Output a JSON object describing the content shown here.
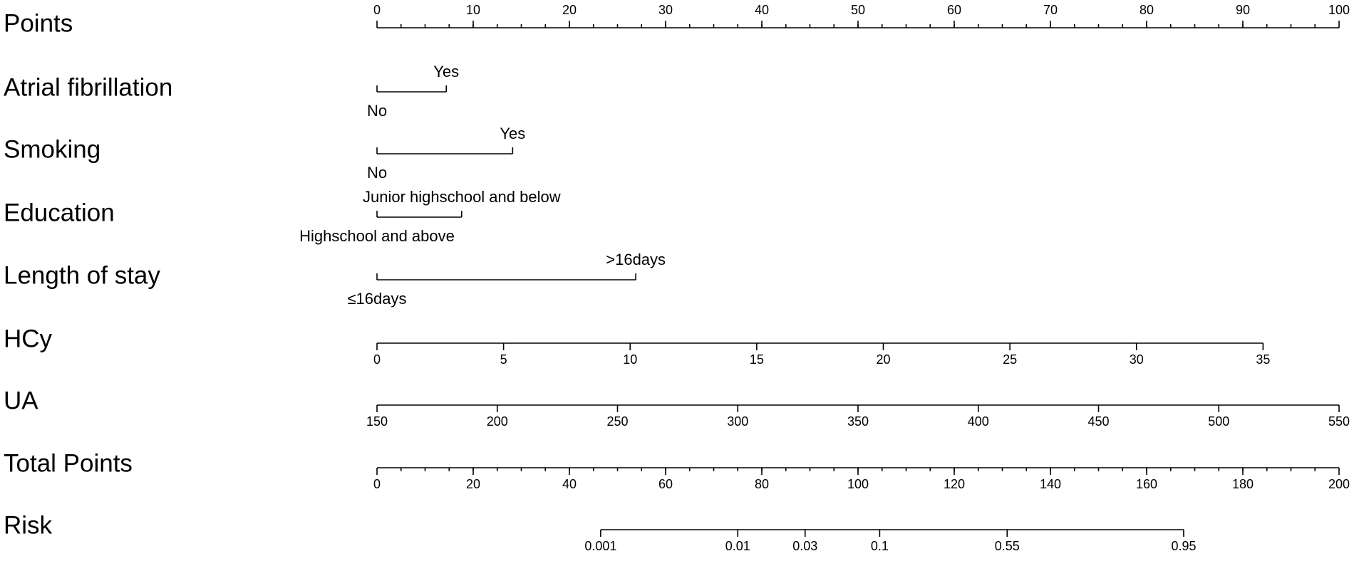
{
  "chart_data": {
    "type": "nomogram",
    "rows": [
      {
        "label": "Points",
        "ticks": [
          0,
          10,
          20,
          30,
          40,
          50,
          60,
          70,
          80,
          90,
          100
        ],
        "xlim": [
          0,
          100
        ],
        "points_lim": [
          0,
          100
        ],
        "minor_step": 2.5,
        "tick_side": "up"
      },
      {
        "label": "Atrial fibrillation",
        "levels": [
          {
            "label": "No",
            "points": 0
          },
          {
            "label": "Yes",
            "points": 7.2
          }
        ]
      },
      {
        "label": "Smoking",
        "levels": [
          {
            "label": "No",
            "points": 0
          },
          {
            "label": "Yes",
            "points": 14.1
          }
        ]
      },
      {
        "label": "Education",
        "levels": [
          {
            "label": "Highschool and above",
            "points": 0
          },
          {
            "label": "Junior highschool and below",
            "points": 8.8
          }
        ]
      },
      {
        "label": "Length of stay",
        "levels": [
          {
            "label": "≤16days",
            "points": 0
          },
          {
            "label": ">16days",
            "points": 26.9
          }
        ]
      },
      {
        "label": "HCy",
        "ticks": [
          0,
          5,
          10,
          15,
          20,
          25,
          30,
          35
        ],
        "xlim": [
          0,
          35
        ],
        "points_lim": [
          0,
          92.1
        ],
        "tick_side": "down"
      },
      {
        "label": "UA",
        "ticks": [
          150,
          200,
          250,
          300,
          350,
          400,
          450,
          500,
          550
        ],
        "xlim": [
          150,
          550
        ],
        "points_lim": [
          0,
          100
        ],
        "tick_side": "down"
      },
      {
        "label": "Total Points",
        "ticks": [
          0,
          20,
          40,
          60,
          80,
          100,
          120,
          140,
          160,
          180,
          200
        ],
        "xlim": [
          0,
          200
        ],
        "points_lim": [
          0,
          100
        ],
        "minor_step": 5,
        "tick_side": "down"
      },
      {
        "label": "Risk",
        "ticks": [
          0.001,
          0.01,
          0.03,
          0.1,
          0.55,
          0.95
        ],
        "total_points": [
          46.5,
          75,
          89,
          104.5,
          131,
          167.7
        ],
        "tick_side": "down"
      }
    ]
  }
}
